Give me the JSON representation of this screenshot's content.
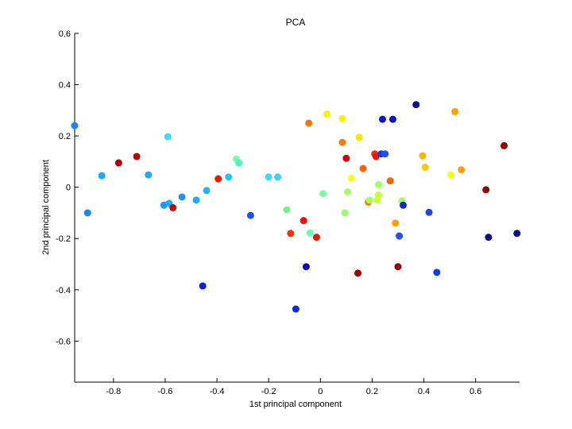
{
  "chart_data": {
    "type": "scatter",
    "title": "PCA",
    "xlabel": "1st principal component",
    "ylabel": "2nd principal component",
    "xlim": [
      -0.95,
      0.77
    ],
    "ylim": [
      -0.76,
      0.6
    ],
    "xticks": [
      "-0.8",
      "-0.6",
      "-0.4",
      "-0.2",
      "0",
      "0.2",
      "0.4",
      "0.6"
    ],
    "xtick_values": [
      -0.8,
      -0.6,
      -0.4,
      -0.2,
      0,
      0.2,
      0.4,
      0.6
    ],
    "yticks": [
      "-0.6",
      "-0.4",
      "-0.2",
      "0",
      "0.2",
      "0.4",
      "0.6"
    ],
    "ytick_values": [
      -0.6,
      -0.4,
      -0.2,
      0,
      0.2,
      0.4,
      0.6
    ],
    "grid": false,
    "colormap": "jet",
    "points": [
      {
        "x": -0.95,
        "y": 0.24,
        "color": "#1e82ff"
      },
      {
        "x": -0.9,
        "y": -0.1,
        "color": "#1e82ff"
      },
      {
        "x": -0.845,
        "y": 0.045,
        "color": "#1eaaff"
      },
      {
        "x": -0.78,
        "y": 0.095,
        "color": "#b40000"
      },
      {
        "x": -0.71,
        "y": 0.12,
        "color": "#b40000"
      },
      {
        "x": -0.665,
        "y": 0.048,
        "color": "#1eaaff"
      },
      {
        "x": -0.605,
        "y": -0.07,
        "color": "#1e96ff"
      },
      {
        "x": -0.59,
        "y": 0.197,
        "color": "#3cdcff"
      },
      {
        "x": -0.585,
        "y": -0.063,
        "color": "#1eaaff"
      },
      {
        "x": -0.57,
        "y": -0.08,
        "color": "#c80000"
      },
      {
        "x": -0.535,
        "y": -0.038,
        "color": "#1e96ff"
      },
      {
        "x": -0.48,
        "y": -0.05,
        "color": "#1eaaff"
      },
      {
        "x": -0.455,
        "y": -0.385,
        "color": "#0a1edc"
      },
      {
        "x": -0.44,
        "y": -0.013,
        "color": "#1eb4ff"
      },
      {
        "x": -0.395,
        "y": 0.033,
        "color": "#e61e00"
      },
      {
        "x": -0.355,
        "y": 0.04,
        "color": "#1ec8ff"
      },
      {
        "x": -0.325,
        "y": 0.11,
        "color": "#78ffa0"
      },
      {
        "x": -0.315,
        "y": 0.095,
        "color": "#50f0c8"
      },
      {
        "x": -0.27,
        "y": -0.11,
        "color": "#1e50f0"
      },
      {
        "x": -0.2,
        "y": 0.04,
        "color": "#3cdcff"
      },
      {
        "x": -0.165,
        "y": 0.04,
        "color": "#3cd2f0"
      },
      {
        "x": -0.13,
        "y": -0.088,
        "color": "#78f090"
      },
      {
        "x": -0.115,
        "y": -0.18,
        "color": "#f03200"
      },
      {
        "x": -0.095,
        "y": -0.475,
        "color": "#0a28dc"
      },
      {
        "x": -0.065,
        "y": -0.13,
        "color": "#f01400"
      },
      {
        "x": -0.055,
        "y": -0.31,
        "color": "#0a0ab4"
      },
      {
        "x": -0.045,
        "y": 0.25,
        "color": "#ff7800"
      },
      {
        "x": -0.04,
        "y": -0.178,
        "color": "#64ffb4"
      },
      {
        "x": -0.015,
        "y": -0.195,
        "color": "#f01400"
      },
      {
        "x": 0.01,
        "y": -0.025,
        "color": "#78ffa0"
      },
      {
        "x": 0.025,
        "y": 0.285,
        "color": "#fff000"
      },
      {
        "x": 0.085,
        "y": 0.268,
        "color": "#fff000"
      },
      {
        "x": 0.085,
        "y": 0.175,
        "color": "#ff7800"
      },
      {
        "x": 0.095,
        "y": -0.1,
        "color": "#96ff6e"
      },
      {
        "x": 0.1,
        "y": 0.113,
        "color": "#dc0000"
      },
      {
        "x": 0.105,
        "y": -0.018,
        "color": "#a0ff64"
      },
      {
        "x": 0.12,
        "y": 0.035,
        "color": "#f0ff14"
      },
      {
        "x": 0.145,
        "y": -0.335,
        "color": "#a00000"
      },
      {
        "x": 0.15,
        "y": 0.195,
        "color": "#ffe600"
      },
      {
        "x": 0.165,
        "y": 0.073,
        "color": "#ff6400"
      },
      {
        "x": 0.185,
        "y": -0.058,
        "color": "#ff7800"
      },
      {
        "x": 0.19,
        "y": -0.05,
        "color": "#aaff5a"
      },
      {
        "x": 0.21,
        "y": 0.13,
        "color": "#f03200"
      },
      {
        "x": 0.215,
        "y": 0.12,
        "color": "#f01400"
      },
      {
        "x": 0.22,
        "y": -0.05,
        "color": "#c8ff3c"
      },
      {
        "x": 0.225,
        "y": 0.01,
        "color": "#a0ff64"
      },
      {
        "x": 0.225,
        "y": -0.03,
        "color": "#c8ff3c"
      },
      {
        "x": 0.235,
        "y": 0.13,
        "color": "#0a3cf0"
      },
      {
        "x": 0.24,
        "y": 0.265,
        "color": "#0a14c8"
      },
      {
        "x": 0.25,
        "y": 0.13,
        "color": "#1e50f0"
      },
      {
        "x": 0.27,
        "y": 0.025,
        "color": "#ff6400"
      },
      {
        "x": 0.28,
        "y": 0.265,
        "color": "#0a14b4"
      },
      {
        "x": 0.29,
        "y": -0.14,
        "color": "#ffa000"
      },
      {
        "x": 0.3,
        "y": -0.31,
        "color": "#960000"
      },
      {
        "x": 0.305,
        "y": -0.19,
        "color": "#1e50ff"
      },
      {
        "x": 0.315,
        "y": -0.053,
        "color": "#a0ff64"
      },
      {
        "x": 0.32,
        "y": -0.07,
        "color": "#0a28dc"
      },
      {
        "x": 0.37,
        "y": 0.322,
        "color": "#0a0a96"
      },
      {
        "x": 0.395,
        "y": 0.123,
        "color": "#ffb400"
      },
      {
        "x": 0.405,
        "y": 0.078,
        "color": "#ffc800"
      },
      {
        "x": 0.42,
        "y": -0.098,
        "color": "#1e46f0"
      },
      {
        "x": 0.45,
        "y": -0.332,
        "color": "#0a3cf0"
      },
      {
        "x": 0.505,
        "y": 0.048,
        "color": "#f0ff14"
      },
      {
        "x": 0.52,
        "y": 0.295,
        "color": "#ffa000"
      },
      {
        "x": 0.545,
        "y": 0.068,
        "color": "#ffa000"
      },
      {
        "x": 0.64,
        "y": -0.01,
        "color": "#960000"
      },
      {
        "x": 0.65,
        "y": -0.195,
        "color": "#0a0a96"
      },
      {
        "x": 0.71,
        "y": 0.162,
        "color": "#960000"
      },
      {
        "x": 0.76,
        "y": -0.18,
        "color": "#0a0a8c"
      }
    ]
  }
}
